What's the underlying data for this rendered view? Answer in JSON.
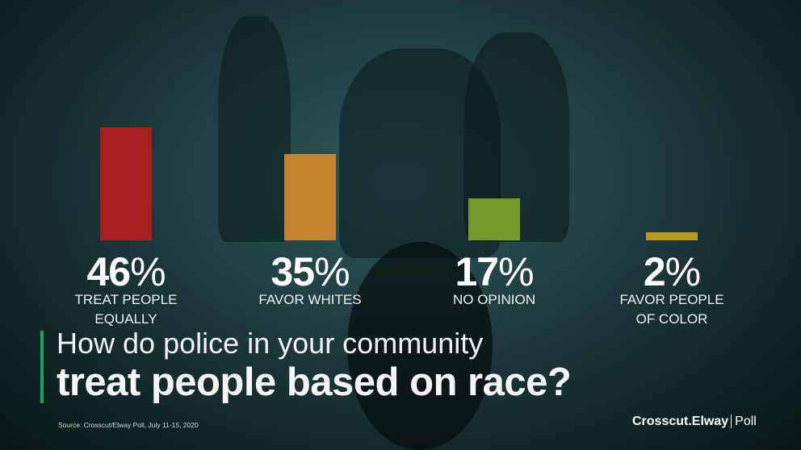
{
  "chart_data": {
    "type": "bar",
    "title": "How do police in your community treat people based on race?",
    "title_line1": "How do police in your community",
    "title_line2": "treat people based on race?",
    "categories": [
      "TREAT PEOPLE EQUALLY",
      "FAVOR WHITES",
      "NO OPINION",
      "FAVOR PEOPLE OF COLOR"
    ],
    "category_lines": [
      [
        "TREAT PEOPLE",
        "EQUALLY"
      ],
      [
        "FAVOR WHITES"
      ],
      [
        "NO OPINION"
      ],
      [
        "FAVOR PEOPLE",
        "OF COLOR"
      ]
    ],
    "values": [
      46,
      35,
      17,
      2
    ],
    "value_labels": [
      "46",
      "35",
      "17",
      "2"
    ],
    "unit": "%",
    "colors": [
      "#b81d1d",
      "#d98b2b",
      "#7fa72b",
      "#caa51c"
    ],
    "grid": false
  },
  "footer": {
    "source": "Source: Crosscut/Elway Poll, July 11-15, 2020",
    "logo_main": "Crosscut.Elway",
    "logo_poll": "Poll"
  },
  "accent_color": "#1fa060"
}
